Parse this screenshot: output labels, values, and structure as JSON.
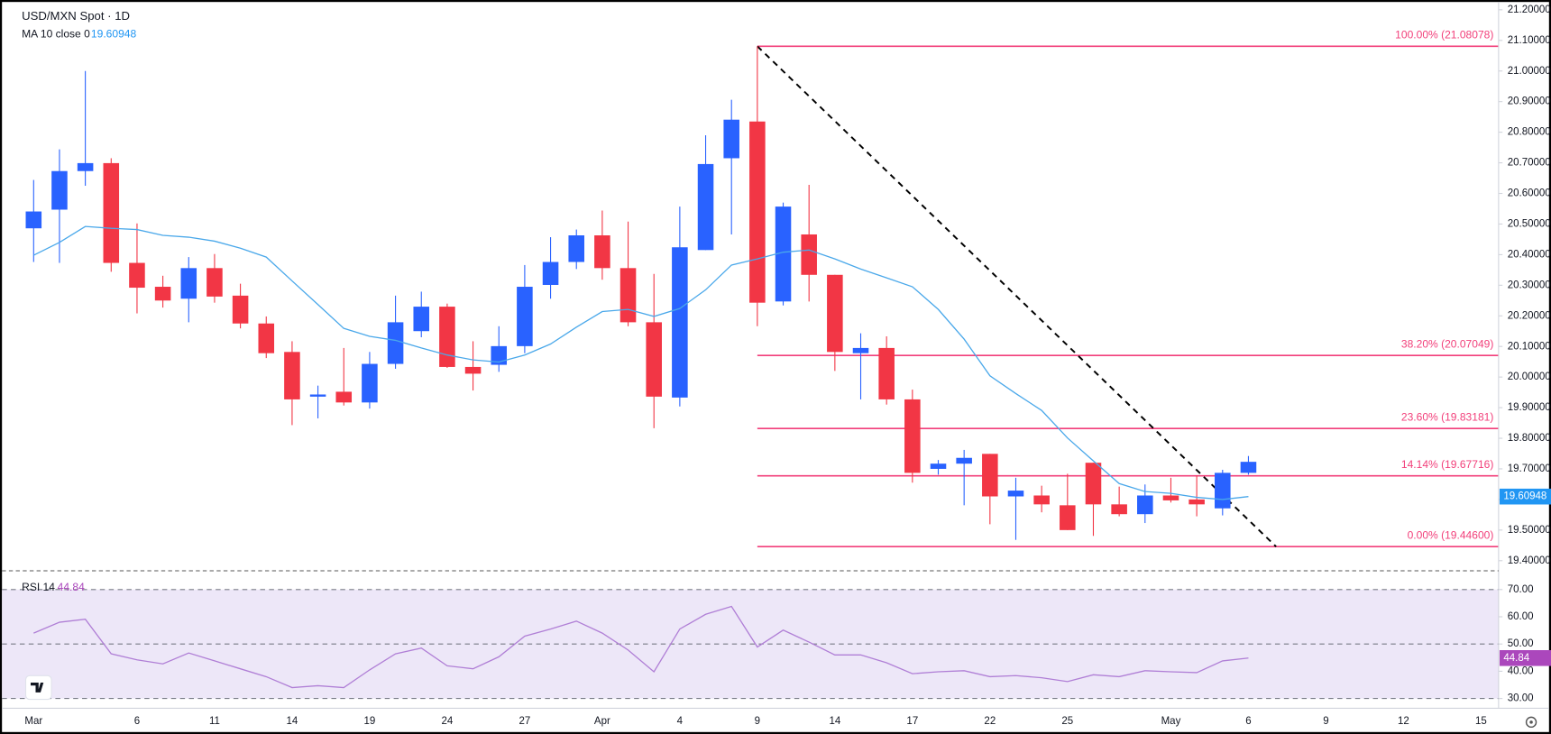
{
  "chart_data": [
    {
      "type": "candlestick",
      "title": "USD/MXN Spot · 1D",
      "categories": [
        "Mar",
        null,
        null,
        null,
        "6",
        null,
        null,
        "11",
        null,
        null,
        "14",
        null,
        null,
        "19",
        null,
        null,
        "24",
        null,
        null,
        "27",
        null,
        null,
        "Apr",
        null,
        null,
        "4",
        null,
        null,
        "9",
        null,
        null,
        "14",
        null,
        null,
        "17",
        null,
        null,
        "22",
        null,
        null,
        "25",
        null,
        null,
        null,
        "May",
        null,
        null,
        "6",
        null,
        null,
        "9",
        null,
        null,
        "12",
        null,
        null,
        "15"
      ],
      "open": [
        20.486,
        20.547,
        20.673,
        20.699,
        20.373,
        20.295,
        20.256,
        20.356,
        20.266,
        20.175,
        20.082,
        19.936,
        19.952,
        19.917,
        20.043,
        20.15,
        20.23,
        20.033,
        20.04,
        20.101,
        20.301,
        20.376,
        20.463,
        20.356,
        20.179,
        19.933,
        20.415,
        20.715,
        20.835,
        20.247,
        20.466,
        20.334,
        20.078,
        20.095,
        19.927,
        19.7,
        19.717,
        19.749,
        19.61,
        19.613,
        19.581,
        19.72,
        19.584,
        19.552,
        19.613,
        19.6,
        19.571,
        19.687,
        null,
        null,
        null,
        null,
        null,
        null,
        null,
        null,
        null
      ],
      "high": [
        20.644,
        20.744,
        21.0,
        20.715,
        20.502,
        20.331,
        20.392,
        20.402,
        20.305,
        20.198,
        20.117,
        19.972,
        20.095,
        20.082,
        20.266,
        20.279,
        20.24,
        20.117,
        20.166,
        20.366,
        20.457,
        20.482,
        20.544,
        20.508,
        20.337,
        20.557,
        20.79,
        20.906,
        21.08078,
        20.57,
        20.628,
        20.334,
        20.143,
        20.133,
        19.959,
        19.729,
        19.762,
        19.749,
        19.671,
        19.645,
        19.684,
        19.72,
        19.642,
        19.649,
        19.671,
        19.678,
        19.697,
        19.742,
        null,
        null,
        null,
        null,
        null,
        null,
        null,
        null,
        null
      ],
      "low": [
        20.376,
        20.373,
        20.625,
        20.344,
        20.208,
        20.227,
        20.179,
        20.243,
        20.159,
        20.062,
        19.843,
        19.865,
        19.907,
        19.897,
        20.027,
        20.13,
        20.03,
        19.956,
        20.017,
        20.078,
        20.256,
        20.353,
        20.318,
        20.166,
        19.833,
        19.904,
        20.415,
        20.466,
        20.166,
        20.234,
        20.247,
        20.02,
        19.927,
        19.91,
        19.655,
        19.681,
        19.581,
        19.519,
        19.468,
        19.558,
        19.5,
        19.481,
        19.545,
        19.523,
        19.59,
        19.545,
        19.548,
        19.681,
        null,
        null,
        null,
        null,
        null,
        null,
        null,
        null,
        null
      ],
      "close": [
        20.541,
        20.673,
        20.699,
        20.373,
        20.292,
        20.25,
        20.356,
        20.263,
        20.175,
        20.078,
        19.927,
        19.943,
        19.917,
        20.043,
        20.179,
        20.23,
        20.033,
        20.011,
        20.101,
        20.295,
        20.376,
        20.463,
        20.356,
        20.179,
        19.936,
        20.424,
        20.696,
        20.841,
        20.243,
        20.557,
        20.334,
        20.082,
        20.095,
        19.927,
        19.687,
        19.717,
        19.736,
        19.61,
        19.629,
        19.584,
        19.5,
        19.584,
        19.552,
        19.613,
        19.597,
        19.584,
        19.687,
        19.723,
        null,
        null,
        null,
        null,
        null,
        null,
        null,
        null,
        null
      ],
      "up_color": "#2962ff",
      "down_color": "#f23645",
      "ylim": [
        19.367,
        21.232
      ],
      "yticks": [
        {
          "value": 19.4,
          "label": "19.40000"
        },
        {
          "value": 19.5,
          "label": "19.50000"
        },
        {
          "value": 19.6,
          "label": "19.60000"
        },
        {
          "value": 19.7,
          "label": "19.70000"
        },
        {
          "value": 19.8,
          "label": "19.80000"
        },
        {
          "value": 19.9,
          "label": "19.90000"
        },
        {
          "value": 20.0,
          "label": "20.00000"
        },
        {
          "value": 20.1,
          "label": "20.10000"
        },
        {
          "value": 20.2,
          "label": "20.20000"
        },
        {
          "value": 20.3,
          "label": "20.30000"
        },
        {
          "value": 20.4,
          "label": "20.40000"
        },
        {
          "value": 20.5,
          "label": "20.50000"
        },
        {
          "value": 20.6,
          "label": "20.60000"
        },
        {
          "value": 20.7,
          "label": "20.70000"
        },
        {
          "value": 20.8,
          "label": "20.80000"
        },
        {
          "value": 20.9,
          "label": "20.90000"
        },
        {
          "value": 21.0,
          "label": "21.00000"
        },
        {
          "value": 21.1,
          "label": "21.10000"
        },
        {
          "value": 21.2,
          "label": "21.20000"
        }
      ],
      "series": [
        {
          "name": "MA 10 close 0",
          "color": "#4aa8ea",
          "value_label": "19.60948",
          "values": [
            20.398,
            20.44,
            20.492,
            20.486,
            20.482,
            20.463,
            20.457,
            20.444,
            20.421,
            20.392,
            20.314,
            20.237,
            20.159,
            20.133,
            20.12,
            20.095,
            20.072,
            20.056,
            20.049,
            20.072,
            20.108,
            20.163,
            20.214,
            20.221,
            20.198,
            20.224,
            20.285,
            20.366,
            20.386,
            20.408,
            20.415,
            20.386,
            20.353,
            20.324,
            20.295,
            20.221,
            20.124,
            20.004,
            19.946,
            19.891,
            19.801,
            19.726,
            19.652,
            19.626,
            19.62,
            19.607,
            19.6,
            19.60948,
            null,
            null,
            null,
            null,
            null,
            null,
            null,
            null,
            null
          ]
        }
      ],
      "fib_color": "#f23f7a",
      "fib_levels": [
        {
          "value": 21.08078,
          "label": "100.00% (21.08078)"
        },
        {
          "value": 20.07049,
          "label": "38.20% (20.07049)"
        },
        {
          "value": 19.83181,
          "label": "23.60% (19.83181)"
        },
        {
          "value": 19.67716,
          "label": "14.14% (19.67716)"
        },
        {
          "value": 19.446,
          "label": "0.00% (19.44600)"
        }
      ],
      "trend_line": {
        "x": [
          28,
          48.07
        ],
        "y": [
          21.08078,
          19.446
        ]
      }
    },
    {
      "type": "line",
      "series": [
        {
          "name": "RSI 14",
          "color": "#b07fd6",
          "value_label": "44.84",
          "values": [
            54.0,
            58.0,
            59.1,
            46.4,
            44.2,
            42.7,
            46.7,
            43.8,
            40.9,
            38.0,
            34.0,
            34.7,
            34.0,
            40.5,
            46.4,
            48.5,
            42.0,
            40.9,
            45.3,
            52.9,
            55.5,
            58.4,
            54.0,
            47.8,
            39.8,
            55.5,
            60.9,
            63.8,
            48.9,
            55.1,
            50.7,
            46.0,
            46.0,
            43.1,
            39.1,
            39.8,
            40.2,
            38.0,
            38.4,
            37.6,
            36.2,
            38.7,
            38.0,
            40.2,
            39.8,
            39.5,
            43.8,
            44.84,
            null,
            null,
            null,
            null,
            null,
            null,
            null,
            null,
            null
          ]
        }
      ],
      "ylim": [
        26.4,
        75.8
      ],
      "yticks": [
        {
          "value": 30,
          "label": "30.00"
        },
        {
          "value": 40,
          "label": "40.00"
        },
        {
          "value": 50,
          "label": "50.00"
        },
        {
          "value": 60,
          "label": "60.00"
        },
        {
          "value": 70,
          "label": "70.00"
        }
      ],
      "band": [
        30,
        70
      ],
      "band_color": "#ede7f8",
      "dashed_levels": [
        30,
        50,
        70
      ]
    }
  ]
}
